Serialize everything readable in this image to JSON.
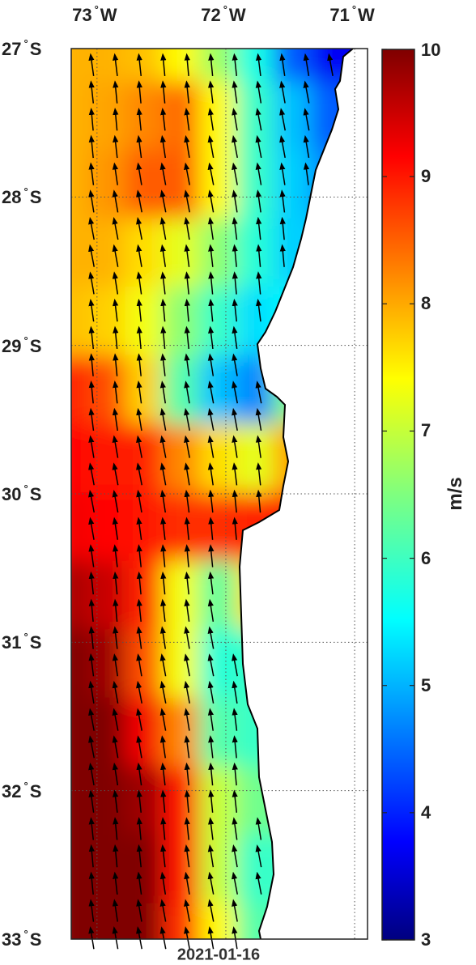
{
  "map": {
    "lon_labels": [
      {
        "deg": "73",
        "hemi": "W",
        "value": -73
      },
      {
        "deg": "72",
        "hemi": "W",
        "value": -72
      },
      {
        "deg": "71",
        "hemi": "W",
        "value": -71
      }
    ],
    "lat_labels": [
      {
        "deg": "27",
        "hemi": "S",
        "value": -27
      },
      {
        "deg": "28",
        "hemi": "S",
        "value": -28
      },
      {
        "deg": "29",
        "hemi": "S",
        "value": -29
      },
      {
        "deg": "30",
        "hemi": "S",
        "value": -30
      },
      {
        "deg": "31",
        "hemi": "S",
        "value": -31
      },
      {
        "deg": "32",
        "hemi": "S",
        "value": -32
      },
      {
        "deg": "33",
        "hemi": "S",
        "value": -33
      }
    ],
    "lon_range": [
      -73.2,
      -70.9
    ],
    "lat_range": [
      -33,
      -27
    ],
    "date": "2021-01-16",
    "colors": {
      "land": "#ffffff",
      "coast": "#000000",
      "arrow": "#000000",
      "grid": "#555555"
    }
  },
  "colorbar": {
    "ticks": [
      "3",
      "4",
      "5",
      "6",
      "7",
      "8",
      "9",
      "10"
    ],
    "min": 3,
    "max": 10,
    "units": "m/s",
    "colormap": "jet"
  }
}
